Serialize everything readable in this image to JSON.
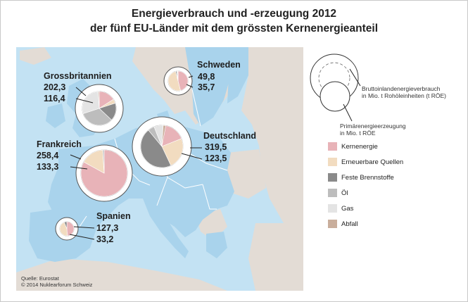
{
  "title_line1": "Energieverbrauch und -erzeugung 2012",
  "title_line2": "der fünf EU-Länder mit dem grössten Kernenergieanteil",
  "colors": {
    "sea": "#c3e2f3",
    "land_other": "#e3dcd5",
    "land_eu": "#a9d3ec",
    "kernenergie": "#e8b3b8",
    "erneuerbare": "#f2dcc0",
    "feste": "#8a8a8a",
    "oel": "#bdbdbd",
    "gas": "#e4e4e4",
    "abfall": "#c9ae9c"
  },
  "countries": [
    {
      "name": "Grossbritannien",
      "verbrauch": "202,3",
      "erzeugung": "116,4",
      "shares": {
        "kernenergie": 0.16,
        "erneuerbare": 0.04,
        "feste": 0.17,
        "oel": 0.33,
        "gas": 0.29,
        "abfall": 0.01
      }
    },
    {
      "name": "Schweden",
      "verbrauch": "49,8",
      "erzeugung": "35,7",
      "shares": {
        "kernenergie": 0.46,
        "erneuerbare": 0.5,
        "feste": 0.02,
        "oel": 0.01,
        "gas": 0.0,
        "abfall": 0.01
      }
    },
    {
      "name": "Deutschland",
      "verbrauch": "319,5",
      "erzeugung": "123,5",
      "shares": {
        "kernenergie": 0.19,
        "erneuerbare": 0.24,
        "feste": 0.46,
        "oel": 0.05,
        "gas": 0.07,
        "abfall": 0.02
      }
    },
    {
      "name": "Frankreich",
      "verbrauch": "258,4",
      "erzeugung": "133,3",
      "shares": {
        "kernenergie": 0.83,
        "erneuerbare": 0.16,
        "feste": 0.0,
        "oel": 0.01,
        "gas": 0.0,
        "abfall": 0.0
      }
    },
    {
      "name": "Spanien",
      "verbrauch": "127,3",
      "erzeugung": "33,2",
      "shares": {
        "kernenergie": 0.49,
        "erneuerbare": 0.45,
        "feste": 0.06,
        "oel": 0.0,
        "gas": 0.0,
        "abfall": 0.0
      }
    }
  ],
  "legend": {
    "bubble_outer_label_1": "Bruttoinlandenergieverbrauch",
    "bubble_outer_label_2": "in Mio. t Rohöleinheiten (t RÖE)",
    "bubble_inner_label_1": "Primärenergieerzeugung",
    "bubble_inner_label_2": "in Mio. t RÖE",
    "items": [
      {
        "key": "kernenergie",
        "label": "Kernenergie"
      },
      {
        "key": "erneuerbare",
        "label": "Erneuerbare Quellen"
      },
      {
        "key": "feste",
        "label": "Feste Brennstoffe"
      },
      {
        "key": "oel",
        "label": "Öl"
      },
      {
        "key": "gas",
        "label": "Gas"
      },
      {
        "key": "abfall",
        "label": "Abfall"
      }
    ]
  },
  "source_line1": "Quelle: Eurostat",
  "source_line2": "© 2014  Nuklearforum Schweiz"
}
